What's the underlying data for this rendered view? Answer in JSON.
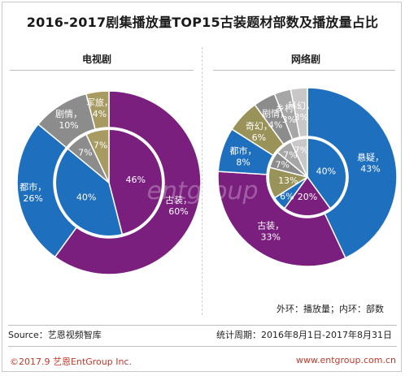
{
  "title": "2016-2017剧集播放量TOP15古装题材部数及播放量占比",
  "legend_note": "外环：播放量；内环：部数",
  "source": "Source：艺恩视频智库",
  "period": "统计周期：2016年8月1日-2017年8月31日",
  "copyright": "©2017.9 艺恩EntGroup Inc.",
  "website": "www.entgroup.com.cn",
  "watermark": "entgroup",
  "colors": {
    "古装": "#7b1f7f",
    "都市": "#1f6fbf",
    "剧情": "#8c8c8c",
    "军旅": "#a89b62",
    "奇幻": "#9a9359",
    "乡村": "#a6a6a6",
    "科幻": "#c8c8c8",
    "悬疑": "#1f6fbf"
  },
  "chart_data": [
    {
      "type": "pie",
      "title": "电视剧",
      "outer": [
        {
          "name": "古装",
          "value": 60,
          "label": "60%"
        },
        {
          "name": "都市",
          "value": 26,
          "label": "26%"
        },
        {
          "name": "剧情",
          "value": 10,
          "label": "10%"
        },
        {
          "name": "军旅",
          "value": 4,
          "label": "4%"
        }
      ],
      "inner": [
        {
          "name": "古装",
          "value": 46,
          "label": "46%"
        },
        {
          "name": "都市",
          "value": 40,
          "label": "40%"
        },
        {
          "name": "剧情",
          "value": 7,
          "label": "7%"
        },
        {
          "name": "军旅",
          "value": 7,
          "label": "7%"
        }
      ]
    },
    {
      "type": "pie",
      "title": "网络剧",
      "outer": [
        {
          "name": "悬疑",
          "value": 43,
          "label": "43%"
        },
        {
          "name": "古装",
          "value": 33,
          "label": "33%"
        },
        {
          "name": "都市",
          "value": 8,
          "label": "8%"
        },
        {
          "name": "奇幻",
          "value": 6,
          "label": "6%"
        },
        {
          "name": "剧情",
          "value": 4,
          "label": "4%"
        },
        {
          "name": "乡村",
          "value": 3,
          "label": "3%"
        },
        {
          "name": "科幻",
          "value": 3,
          "label": "3%"
        }
      ],
      "inner": [
        {
          "name": "悬疑",
          "value": 40,
          "label": "40%"
        },
        {
          "name": "古装",
          "value": 20,
          "label": "20%"
        },
        {
          "name": "都市",
          "value": 6,
          "label": "6%"
        },
        {
          "name": "奇幻",
          "value": 13,
          "label": "13%"
        },
        {
          "name": "剧情",
          "value": 7,
          "label": "7%"
        },
        {
          "name": "乡村",
          "value": 7,
          "label": "7%"
        },
        {
          "name": "科幻",
          "value": 7,
          "label": "7%"
        }
      ]
    }
  ]
}
